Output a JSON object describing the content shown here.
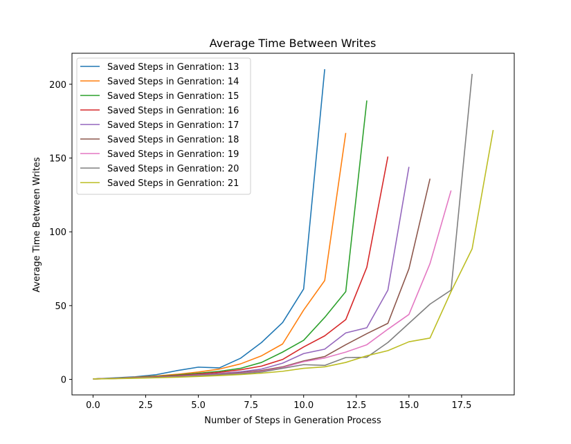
{
  "chart_data": {
    "type": "line",
    "title": "Average Time Between Writes",
    "xlabel": "Number of Steps in Generation Process",
    "ylabel": "Average Time Between Writes",
    "xlim": [
      -1.0,
      20.0
    ],
    "ylim": [
      -10.5,
      221
    ],
    "xticks": [
      0.0,
      2.5,
      5.0,
      7.5,
      10.0,
      12.5,
      15.0,
      17.5
    ],
    "xtick_labels": [
      "0.0",
      "2.5",
      "5.0",
      "7.5",
      "10.0",
      "12.5",
      "15.0",
      "17.5"
    ],
    "yticks": [
      0,
      50,
      100,
      150,
      200
    ],
    "ytick_labels": [
      "0",
      "50",
      "100",
      "150",
      "200"
    ],
    "grid": false,
    "legend": "top-left",
    "series": [
      {
        "name": "Saved Steps in Genration: 13",
        "color": "#1f77b4",
        "x": [
          0,
          1,
          2,
          3,
          4,
          5,
          6,
          7,
          8,
          9,
          10,
          11
        ],
        "y": [
          0.3,
          1.0,
          1.8,
          3.2,
          6.0,
          8.3,
          7.8,
          14.3,
          25.0,
          38.5,
          61.3,
          210.2
        ]
      },
      {
        "name": "Saved Steps in Genration: 14",
        "color": "#ff7f0e",
        "x": [
          0,
          1,
          2,
          3,
          4,
          5,
          6,
          7,
          8,
          9,
          10,
          11,
          12
        ],
        "y": [
          0.3,
          0.8,
          1.5,
          2.3,
          3.5,
          5.0,
          7.0,
          10.5,
          16.0,
          24.0,
          47.0,
          67.0,
          167.0
        ]
      },
      {
        "name": "Saved Steps in Genration: 15",
        "color": "#2ca02c",
        "x": [
          0,
          1,
          2,
          3,
          4,
          5,
          6,
          7,
          8,
          9,
          10,
          11,
          12,
          13
        ],
        "y": [
          0.3,
          0.8,
          1.3,
          2.0,
          3.0,
          4.2,
          5.5,
          7.5,
          11.5,
          18.5,
          26.5,
          42.0,
          59.5,
          189.0
        ]
      },
      {
        "name": "Saved Steps in Genration: 16",
        "color": "#d62728",
        "x": [
          0,
          1,
          2,
          3,
          4,
          5,
          6,
          7,
          8,
          9,
          10,
          11,
          12,
          13,
          14
        ],
        "y": [
          0.3,
          0.7,
          1.2,
          1.8,
          2.6,
          3.6,
          4.8,
          6.5,
          9.0,
          13.5,
          22.0,
          29.5,
          40.5,
          76.0,
          151.0
        ]
      },
      {
        "name": "Saved Steps in Genration: 17",
        "color": "#9467bd",
        "x": [
          0,
          1,
          2,
          3,
          4,
          5,
          6,
          7,
          8,
          9,
          10,
          11,
          12,
          13,
          14,
          15
        ],
        "y": [
          0.3,
          0.7,
          1.1,
          1.6,
          2.3,
          3.1,
          4.0,
          5.2,
          7.0,
          11.0,
          17.5,
          20.5,
          31.5,
          35.0,
          60.5,
          144.0
        ]
      },
      {
        "name": "Saved Steps in Genration: 18",
        "color": "#8c564b",
        "x": [
          0,
          1,
          2,
          3,
          4,
          5,
          6,
          7,
          8,
          9,
          10,
          11,
          12,
          13,
          14,
          15,
          16
        ],
        "y": [
          0.3,
          0.6,
          1.0,
          1.5,
          2.1,
          2.8,
          3.6,
          4.6,
          6.0,
          8.5,
          12.5,
          15.5,
          23.5,
          31.0,
          38.0,
          75.0,
          136.0
        ]
      },
      {
        "name": "Saved Steps in Genration: 19",
        "color": "#e377c2",
        "x": [
          0,
          1,
          2,
          3,
          4,
          5,
          6,
          7,
          8,
          9,
          10,
          11,
          12,
          13,
          14,
          15,
          16,
          17
        ],
        "y": [
          0.3,
          0.6,
          1.0,
          1.4,
          1.9,
          2.6,
          3.3,
          4.2,
          5.4,
          8.0,
          12.0,
          14.5,
          18.5,
          23.5,
          34.0,
          44.0,
          78.5,
          128.0
        ]
      },
      {
        "name": "Saved Steps in Genration: 20",
        "color": "#7f7f7f",
        "x": [
          0,
          1,
          2,
          3,
          4,
          5,
          6,
          7,
          8,
          9,
          10,
          11,
          12,
          13,
          14,
          15,
          16,
          17,
          18
        ],
        "y": [
          0.3,
          0.6,
          0.9,
          1.3,
          1.8,
          2.4,
          3.1,
          3.9,
          5.0,
          7.5,
          10.0,
          9.5,
          14.8,
          15.0,
          25.0,
          38.0,
          51.0,
          60.5,
          207.0
        ]
      },
      {
        "name": "Saved Steps in Genration: 21",
        "color": "#bcbd22",
        "x": [
          0,
          1,
          2,
          3,
          4,
          5,
          6,
          7,
          8,
          9,
          10,
          11,
          12,
          13,
          14,
          15,
          16,
          17,
          18,
          19
        ],
        "y": [
          0.3,
          0.5,
          0.8,
          1.1,
          1.5,
          2.0,
          2.6,
          3.3,
          4.2,
          5.5,
          7.5,
          8.5,
          11.5,
          16.0,
          19.5,
          25.5,
          28.0,
          59.5,
          88.5,
          169.0
        ]
      }
    ]
  }
}
